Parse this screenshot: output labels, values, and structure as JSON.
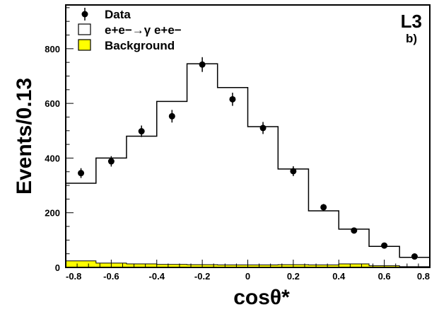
{
  "chart_data": {
    "type": "histogram",
    "xlabel": "cosθ*",
    "ylabel": "Events/0.13",
    "experiment_label": "L3",
    "panel_label": "b)",
    "xlim": [
      -0.8,
      0.8
    ],
    "ylim": [
      0,
      960
    ],
    "x_ticks": [
      "-0.8",
      "-0.6",
      "-0.4",
      "-0.2",
      "0",
      "0.2",
      "0.4",
      "0.6",
      "0.8"
    ],
    "y_ticks": [
      "0",
      "200",
      "400",
      "600",
      "800"
    ],
    "bin_edges": [
      -0.8,
      -0.667,
      -0.533,
      -0.4,
      -0.267,
      -0.133,
      0.0,
      0.133,
      0.267,
      0.4,
      0.533,
      0.667,
      0.8
    ],
    "legend": [
      "Data",
      "e+e−→γ e+e−",
      "Background"
    ],
    "series": [
      {
        "name": "Data",
        "style": "points",
        "x": [
          -0.733,
          -0.6,
          -0.467,
          -0.333,
          -0.2,
          -0.067,
          0.067,
          0.2,
          0.333,
          0.467,
          0.6,
          0.733
        ],
        "values": [
          345,
          388,
          498,
          553,
          742,
          615,
          510,
          352,
          220,
          135,
          80,
          40
        ],
        "errors": [
          18,
          19,
          21,
          23,
          27,
          24,
          22,
          18,
          12,
          10,
          7,
          5
        ]
      },
      {
        "name": "e+e−→γ e+e−",
        "style": "step",
        "values": [
          308,
          400,
          480,
          607,
          745,
          658,
          515,
          360,
          207,
          140,
          77,
          37
        ]
      },
      {
        "name": "Background",
        "style": "filled-step",
        "color": "#ffff00",
        "values": [
          24,
          16,
          13,
          11,
          10,
          9,
          9,
          10,
          9,
          13,
          6,
          3
        ]
      }
    ]
  }
}
